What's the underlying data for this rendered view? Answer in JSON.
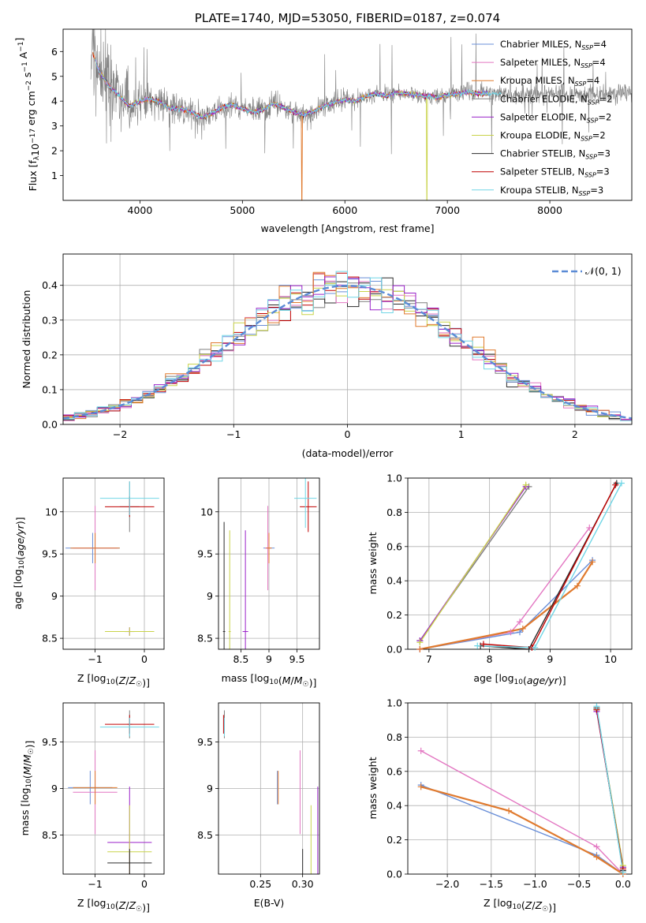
{
  "figure": {
    "title": "PLATE=1740, MJD=53050, FIBERID=0187, z=0.074",
    "series_names": [
      "Chabrier MILES",
      "Salpeter MILES",
      "Kroupa MILES",
      "Chabrier ELODIE",
      "Salpeter ELODIE",
      "Kroupa ELODIE",
      "Chabrier STELIB",
      "Salpeter STELIB",
      "Kroupa STELIB"
    ],
    "nssp": [
      4,
      4,
      4,
      2,
      2,
      2,
      3,
      3,
      3
    ],
    "series_colors": [
      "#6a8fd8",
      "#e377c2",
      "#e07a2e",
      "#7f7f7f",
      "#9a22c9",
      "#c9d34a",
      "#2c2c2c",
      "#c00000",
      "#70d6e6"
    ]
  },
  "chart_data": [
    {
      "id": "spectrum",
      "type": "line",
      "xlabel": "wavelength [Angstrom, rest frame]",
      "ylabel": "Flux [f_λ 10^-17 erg cm^-2 s^-1 A^-1]",
      "xlim": [
        3250,
        8800
      ],
      "ylim": [
        0,
        6.9
      ],
      "xticks": [
        4000,
        5000,
        6000,
        7000,
        8000
      ],
      "yticks": [
        1,
        2,
        3,
        4,
        5,
        6
      ],
      "grid": false,
      "legend": "top-right",
      "data_color": "#808080",
      "continuum_x": [
        3530,
        3600,
        3700,
        3800,
        3900,
        4000,
        4100,
        4200,
        4300,
        4400,
        4500,
        4600,
        4700,
        4800,
        4900,
        5000,
        5100,
        5200,
        5300,
        5400,
        5500,
        5600,
        5700,
        5800,
        5900,
        6000,
        6100,
        6200,
        6300,
        6400,
        6500,
        6600,
        6700,
        6800,
        6900,
        7000,
        7100,
        7200,
        7300,
        7420
      ],
      "continuum_y": [
        6.1,
        5.2,
        4.6,
        4.2,
        3.8,
        4.0,
        4.1,
        3.95,
        3.7,
        3.7,
        3.55,
        3.35,
        3.5,
        3.75,
        3.85,
        3.7,
        3.55,
        3.65,
        3.9,
        3.75,
        3.55,
        3.45,
        3.6,
        3.8,
        3.95,
        4.05,
        4.0,
        4.2,
        4.3,
        4.2,
        4.35,
        4.3,
        4.25,
        4.2,
        4.15,
        4.25,
        4.3,
        4.35,
        4.3,
        4.3
      ]
    },
    {
      "id": "residuals",
      "type": "line",
      "xlabel": "(data-model)/error",
      "ylabel": "Normed distribution",
      "xlim": [
        -2.5,
        2.5
      ],
      "ylim": [
        0,
        0.49
      ],
      "xticks": [
        -2,
        -1,
        0,
        1,
        2
      ],
      "yticks": [
        0.0,
        0.1,
        0.2,
        0.3,
        0.4
      ],
      "grid": true,
      "legend": "top-right",
      "reference_label": "𝒩(0, 1)",
      "bin_width": 0.1
    },
    {
      "id": "age-vs-z",
      "type": "scatter",
      "xlabel": "Z [log10(Z/Z☉)]",
      "ylabel": "age  [log10(age/yr)]",
      "xlim": [
        -1.65,
        0.4
      ],
      "ylim": [
        8.37,
        10.4
      ],
      "xticks": [
        -1,
        0
      ],
      "yticks": [
        8.5,
        9.0,
        9.5,
        10.0
      ],
      "grid": true,
      "points": [
        {
          "s": 0,
          "x": -1.05,
          "y": 9.57,
          "xerr": 0.55,
          "yerr": 0.18
        },
        {
          "s": 1,
          "x": -1.0,
          "y": 9.57,
          "xerr": 0.45,
          "yerr": 0.5
        },
        {
          "s": 2,
          "x": -1.0,
          "y": 9.57,
          "xerr": 0.5,
          "yerr": 0.18
        },
        {
          "s": 3,
          "x": -0.3,
          "y": 10.06,
          "xerr": 0.2,
          "yerr": 0.3
        },
        {
          "s": 4,
          "x": -0.3,
          "y": 8.58,
          "xerr": 0.1,
          "yerr": 0.05
        },
        {
          "s": 5,
          "x": -0.3,
          "y": 8.58,
          "xerr": 0.5,
          "yerr": 0.05
        },
        {
          "s": 7,
          "x": -0.3,
          "y": 10.06,
          "xerr": 0.5,
          "yerr": 0.12
        },
        {
          "s": 8,
          "x": -0.3,
          "y": 10.16,
          "xerr": 0.6,
          "yerr": 0.2
        }
      ]
    },
    {
      "id": "age-vs-mass",
      "type": "scatter",
      "xlabel": "mass [log10(M/M☉)]",
      "ylabel": "",
      "xlim": [
        8.1,
        9.9
      ],
      "ylim": [
        8.37,
        10.4
      ],
      "xticks": [
        8.5,
        9.0,
        9.5
      ],
      "yticks": [
        8.5,
        9.0,
        9.5,
        10.0
      ],
      "grid": true,
      "points": [
        {
          "s": 0,
          "x": 9.0,
          "y": 9.57,
          "xerr": 0.1,
          "yerr": 0.18
        },
        {
          "s": 1,
          "x": 8.98,
          "y": 9.57,
          "xerr": 0.05,
          "yerr": 0.5
        },
        {
          "s": 2,
          "x": 9.0,
          "y": 9.57,
          "xerr": 0.05,
          "yerr": 0.18
        },
        {
          "s": 4,
          "x": 8.58,
          "y": 8.58,
          "xerr": 0.05,
          "yerr": 1.2
        },
        {
          "s": 5,
          "x": 8.3,
          "y": 8.58,
          "xerr": 0.02,
          "yerr": 1.2
        },
        {
          "s": 6,
          "x": 8.2,
          "y": 8.58,
          "xerr": 0.02,
          "yerr": 1.3
        },
        {
          "s": 7,
          "x": 9.7,
          "y": 10.06,
          "xerr": 0.15,
          "yerr": 0.3
        },
        {
          "s": 8,
          "x": 9.65,
          "y": 10.16,
          "xerr": 0.2,
          "yerr": 0.35
        }
      ]
    },
    {
      "id": "weight-vs-age",
      "type": "line",
      "xlabel": "age  [log10(age/yr)]",
      "ylabel": "mass weight",
      "xlim": [
        6.65,
        10.35
      ],
      "ylim": [
        0,
        1
      ],
      "xticks": [
        7,
        8,
        9,
        10
      ],
      "yticks": [
        0.0,
        0.2,
        0.4,
        0.6,
        0.8,
        1.0
      ],
      "grid": true,
      "series": [
        {
          "s": 0,
          "x": [
            6.85,
            8.5,
            9.7
          ],
          "y": [
            0.0,
            0.1,
            0.52
          ]
        },
        {
          "s": 1,
          "x": [
            6.85,
            8.35,
            8.5,
            9.65
          ],
          "y": [
            0.0,
            0.1,
            0.16,
            0.71
          ]
        },
        {
          "s": 2,
          "x": [
            6.85,
            8.55,
            9.45,
            9.7
          ],
          "y": [
            0.0,
            0.12,
            0.37,
            0.51
          ]
        },
        {
          "s": 3,
          "x": [
            6.85,
            8.65
          ],
          "y": [
            0.05,
            0.95
          ]
        },
        {
          "s": 4,
          "x": [
            6.85,
            8.6
          ],
          "y": [
            0.05,
            0.95
          ]
        },
        {
          "s": 5,
          "x": [
            6.85,
            8.6
          ],
          "y": [
            0.04,
            0.96
          ]
        },
        {
          "s": 6,
          "x": [
            7.85,
            8.65,
            10.1
          ],
          "y": [
            0.02,
            0.0,
            0.97
          ]
        },
        {
          "s": 7,
          "x": [
            7.9,
            8.7,
            10.08
          ],
          "y": [
            0.03,
            0.01,
            0.96
          ]
        },
        {
          "s": 8,
          "x": [
            7.8,
            8.75,
            10.18
          ],
          "y": [
            0.02,
            0.01,
            0.97
          ]
        }
      ]
    },
    {
      "id": "mass-vs-z",
      "type": "scatter",
      "xlabel": "Z [log10(Z/Z☉)]",
      "ylabel": "mass [log10(M/M☉)]",
      "xlim": [
        -1.65,
        0.4
      ],
      "ylim": [
        8.08,
        9.92
      ],
      "xticks": [
        -1,
        0
      ],
      "yticks": [
        8.5,
        9.0,
        9.5
      ],
      "grid": true,
      "points": [
        {
          "s": 0,
          "x": -1.1,
          "y": 9.01,
          "xerr": 0.45,
          "yerr": 0.18
        },
        {
          "s": 1,
          "x": -1.0,
          "y": 8.96,
          "xerr": 0.45,
          "yerr": 0.45
        },
        {
          "s": 2,
          "x": -1.0,
          "y": 9.01,
          "xerr": 0.45,
          "yerr": 0.18
        },
        {
          "s": 3,
          "x": -0.3,
          "y": 9.69,
          "xerr": 0.05,
          "yerr": 0.15
        },
        {
          "s": 4,
          "x": -0.3,
          "y": 8.42,
          "xerr": 0.45,
          "yerr": 0.6
        },
        {
          "s": 5,
          "x": -0.3,
          "y": 8.32,
          "xerr": 0.45,
          "yerr": 0.5
        },
        {
          "s": 6,
          "x": -0.3,
          "y": 8.2,
          "xerr": 0.45,
          "yerr": 0.15
        },
        {
          "s": 7,
          "x": -0.3,
          "y": 9.69,
          "xerr": 0.5,
          "yerr": 0.1
        },
        {
          "s": 8,
          "x": -0.3,
          "y": 9.66,
          "xerr": 0.6,
          "yerr": 0.1
        }
      ]
    },
    {
      "id": "mass-vs-ebv",
      "type": "scatter",
      "xlabel": "E(B-V)",
      "ylabel": "",
      "xlim": [
        0.2,
        0.32
      ],
      "ylim": [
        8.08,
        9.92
      ],
      "xticks": [
        0.25,
        0.3
      ],
      "yticks": [
        8.5,
        9.0,
        9.5
      ],
      "grid": true,
      "points": [
        {
          "s": 0,
          "x": 0.27,
          "y": 9.01,
          "yerr": 0.18
        },
        {
          "s": 1,
          "x": 0.297,
          "y": 8.96,
          "yerr": 0.45
        },
        {
          "s": 2,
          "x": 0.271,
          "y": 9.01,
          "yerr": 0.18
        },
        {
          "s": 3,
          "x": 0.207,
          "y": 9.69,
          "yerr": 0.15
        },
        {
          "s": 4,
          "x": 0.318,
          "y": 8.42,
          "yerr": 0.6
        },
        {
          "s": 5,
          "x": 0.31,
          "y": 8.32,
          "yerr": 0.5
        },
        {
          "s": 6,
          "x": 0.3,
          "y": 8.2,
          "yerr": 0.15
        },
        {
          "s": 7,
          "x": 0.206,
          "y": 9.69,
          "yerr": 0.1
        },
        {
          "s": 8,
          "x": 0.207,
          "y": 9.66,
          "yerr": 0.1
        }
      ]
    },
    {
      "id": "weight-vs-z",
      "type": "line",
      "xlabel": "Z [log10(Z/Z☉)]",
      "ylabel": "mass weight",
      "xlim": [
        -2.45,
        0.1
      ],
      "ylim": [
        0,
        1
      ],
      "xticks": [
        -2.0,
        -1.5,
        -1.0,
        -0.5,
        0.0
      ],
      "yticks": [
        0.0,
        0.2,
        0.4,
        0.6,
        0.8,
        1.0
      ],
      "grid": true,
      "series": [
        {
          "s": 0,
          "x": [
            -2.3,
            -0.3,
            0.0
          ],
          "y": [
            0.52,
            0.11,
            0.0
          ]
        },
        {
          "s": 1,
          "x": [
            -2.3,
            -0.3,
            0.0
          ],
          "y": [
            0.72,
            0.16,
            0.0
          ]
        },
        {
          "s": 2,
          "x": [
            -2.3,
            -1.3,
            -0.3,
            0.0
          ],
          "y": [
            0.51,
            0.37,
            0.1,
            0.0
          ]
        },
        {
          "s": 3,
          "x": [
            -0.3,
            0.0
          ],
          "y": [
            0.96,
            0.04
          ]
        },
        {
          "s": 4,
          "x": [
            -0.3,
            0.0
          ],
          "y": [
            0.95,
            0.04
          ]
        },
        {
          "s": 5,
          "x": [
            -0.3,
            0.0
          ],
          "y": [
            0.96,
            0.05
          ]
        },
        {
          "s": 6,
          "x": [
            -0.3,
            0.0
          ],
          "y": [
            0.97,
            0.02
          ]
        },
        {
          "s": 7,
          "x": [
            -0.3,
            0.0
          ],
          "y": [
            0.96,
            0.03
          ]
        },
        {
          "s": 8,
          "x": [
            -0.3,
            0.0
          ],
          "y": [
            0.98,
            0.01
          ]
        }
      ]
    }
  ]
}
